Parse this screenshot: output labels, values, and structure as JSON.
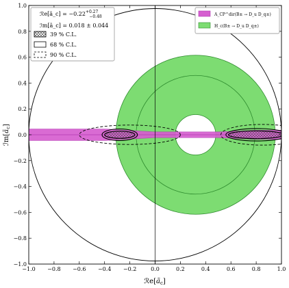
{
  "chart_data": {
    "type": "contour",
    "xlabel_main": "ℛe[",
    "xlabel_var": "ã",
    "xlabel_sub": "c",
    "xlabel_end": "]",
    "ylabel_main": "ℐm[",
    "ylabel_var": "ã",
    "ylabel_sub": "c",
    "ylabel_end": "]",
    "xlim": [
      -1.0,
      1.0
    ],
    "ylim": [
      -1.0,
      1.0
    ],
    "xticks": [
      "−1.0",
      "−0.8",
      "−0.6",
      "−0.4",
      "−0.2",
      "0.0",
      "0.2",
      "0.4",
      "0.6",
      "0.8",
      "1.0"
    ],
    "yticks": [
      "−1.0",
      "−0.8",
      "−0.6",
      "−0.4",
      "−0.2",
      "0.0",
      "0.2",
      "0.4",
      "0.6",
      "0.8",
      "1.0"
    ],
    "xtick_values": [
      -1.0,
      -0.8,
      -0.6,
      -0.4,
      -0.2,
      0.0,
      0.2,
      0.4,
      0.6,
      0.8,
      1.0
    ],
    "ytick_values": [
      -1.0,
      -0.8,
      -0.6,
      -0.4,
      -0.2,
      0.0,
      0.2,
      0.4,
      0.6,
      0.8,
      1.0
    ],
    "unit_circle": {
      "center": [
        0.0,
        0.0
      ],
      "radius": 1.0
    },
    "hc_band": {
      "label": "H_c(B± → D_u D_q±)",
      "center": [
        0.32,
        0.0
      ],
      "inner_radius": 0.16,
      "outer_radius": 0.63,
      "mid_radius": 0.47,
      "color": "#7ddc72",
      "edge_color": "#2e8b2e"
    },
    "acp_band": {
      "label": "A_CP^dir(B± → D_u D_q±)",
      "y_center": 0.0,
      "half_width_left": 0.045,
      "half_width_mid": 0.022,
      "half_width_right": 0.035,
      "color": "#d65fd0",
      "edge_color": "#b03ab0"
    },
    "cl_contours": {
      "cl39": {
        "label": "39 % C.L.",
        "regions": [
          {
            "x": [
              -0.4,
              -0.16
            ],
            "y_half": 0.028
          },
          {
            "x": [
              0.58,
              1.0
            ],
            "y_half": 0.03
          }
        ]
      },
      "cl68": {
        "label": "68 % C.L.",
        "regions": [
          {
            "x": [
              -0.42,
              -0.14
            ],
            "y_half": 0.045
          },
          {
            "x": [
              0.56,
              1.0
            ],
            "y_half": 0.048
          }
        ]
      },
      "cl90": {
        "label": "90 % C.L.",
        "center": [
          0.0,
          0.0
        ],
        "rx": 0.6,
        "ry_max": 0.075
      }
    },
    "fit_result": {
      "re_label": "ℛe[ã_c] = −0.22",
      "re_sup": "+0.27",
      "re_sub": "−0.48",
      "im_label": "ℐm[ã_c] = 0.018 ± 0.044"
    },
    "colors": {
      "green": "#7ddc72",
      "magenta": "#d65fd0",
      "hatch": "#555555"
    }
  }
}
